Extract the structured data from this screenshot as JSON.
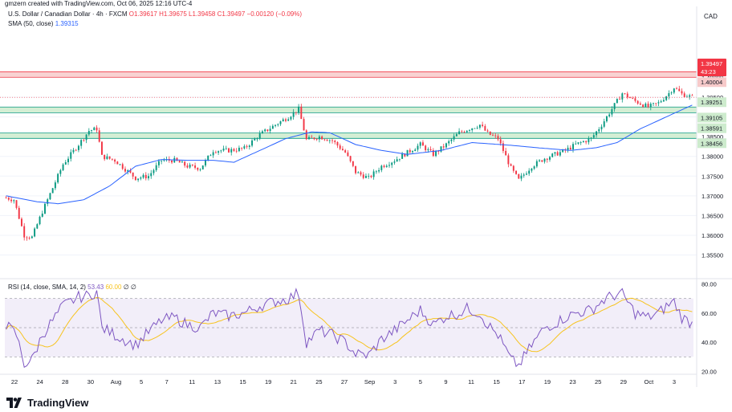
{
  "header": {
    "creator_line": "gmzern created with TradingView.com, Oct 06, 2025 12:16 UTC-4",
    "symbol_title": "U.S. Dollar / Canadian Dollar · 4h · FXCM",
    "ohlc": "O1.39617 H1.39675 L1.39458 C1.39497 −0.00120 (−0.09%)",
    "sma_label": "SMA (50, close)",
    "sma_value": "1.39315",
    "currency": "CAD"
  },
  "price_tags": {
    "last_price": "1.39497",
    "countdown": "43:23"
  },
  "rsi": {
    "label": "RSI (14, close, SMA, 14, 2)",
    "value": "53.43",
    "sma_value": "60.00",
    "extra": "∅ ∅",
    "axis_ticks": [
      "80.00",
      "60.00",
      "40.00",
      "20.00"
    ]
  },
  "brand": {
    "name": "TradingView"
  },
  "colors": {
    "up": "#089981",
    "down": "#f23645",
    "sma": "#2962ff",
    "rsi_line": "#7e57c2",
    "rsi_sma": "#f7c31d",
    "resistance_zone": "#f7caca",
    "support_zone": "#cdebcd"
  },
  "chart_data": {
    "type": "candlestick",
    "title": "U.S. Dollar / Canadian Dollar · 4h · FXCM",
    "ylim": [
      1.349,
      1.418
    ],
    "y_ticks": [
      "1.35500",
      "1.36000",
      "1.36500",
      "1.37000",
      "1.37500",
      "1.38000",
      "1.38500",
      "1.39000",
      "1.39500",
      "1.40000"
    ],
    "x_ticks": [
      "22",
      "24",
      "28",
      "30",
      "Aug",
      "5",
      "7",
      "11",
      "13",
      "15",
      "19",
      "21",
      "25",
      "27",
      "Sep",
      "3",
      "5",
      "9",
      "11",
      "15",
      "17",
      "19",
      "23",
      "25",
      "29",
      "Oct",
      "3"
    ],
    "zones": [
      {
        "type": "resistance",
        "upper": "1.40145",
        "lower": "1.40004"
      },
      {
        "type": "support",
        "upper": "1.39251",
        "lower": "1.39105"
      },
      {
        "type": "support",
        "upper": "1.38591",
        "lower": "1.38456"
      }
    ],
    "sma_anchors": [
      [
        0,
        1.37
      ],
      [
        12,
        1.3685
      ],
      [
        20,
        1.368
      ],
      [
        30,
        1.369
      ],
      [
        40,
        1.3725
      ],
      [
        50,
        1.3775
      ],
      [
        60,
        1.3792
      ],
      [
        70,
        1.379
      ],
      [
        80,
        1.379
      ],
      [
        88,
        1.3785
      ],
      [
        98,
        1.3815
      ],
      [
        108,
        1.3845
      ],
      [
        118,
        1.3862
      ],
      [
        125,
        1.386
      ],
      [
        135,
        1.383
      ],
      [
        145,
        1.3815
      ],
      [
        155,
        1.3805
      ],
      [
        168,
        1.3815
      ],
      [
        180,
        1.3835
      ],
      [
        195,
        1.3828
      ],
      [
        205,
        1.3822
      ],
      [
        218,
        1.3815
      ],
      [
        228,
        1.3822
      ],
      [
        236,
        1.3835
      ],
      [
        245,
        1.387
      ],
      [
        255,
        1.39
      ],
      [
        265,
        1.393
      ]
    ],
    "close_anchors": [
      [
        0,
        1.3695
      ],
      [
        3,
        1.369
      ],
      [
        7,
        1.36
      ],
      [
        10,
        1.3595
      ],
      [
        14,
        1.366
      ],
      [
        18,
        1.372
      ],
      [
        22,
        1.378
      ],
      [
        28,
        1.383
      ],
      [
        32,
        1.3865
      ],
      [
        35,
        1.387
      ],
      [
        37,
        1.38
      ],
      [
        42,
        1.379
      ],
      [
        50,
        1.3745
      ],
      [
        55,
        1.375
      ],
      [
        60,
        1.379
      ],
      [
        65,
        1.379
      ],
      [
        70,
        1.3775
      ],
      [
        75,
        1.377
      ],
      [
        80,
        1.3815
      ],
      [
        86,
        1.3815
      ],
      [
        92,
        1.382
      ],
      [
        98,
        1.3855
      ],
      [
        104,
        1.388
      ],
      [
        109,
        1.39
      ],
      [
        113,
        1.392
      ],
      [
        116,
        1.3842
      ],
      [
        121,
        1.385
      ],
      [
        126,
        1.384
      ],
      [
        131,
        1.381
      ],
      [
        135,
        1.376
      ],
      [
        140,
        1.3745
      ],
      [
        145,
        1.3775
      ],
      [
        150,
        1.379
      ],
      [
        155,
        1.381
      ],
      [
        160,
        1.383
      ],
      [
        165,
        1.3805
      ],
      [
        170,
        1.383
      ],
      [
        175,
        1.386
      ],
      [
        178,
        1.3868
      ],
      [
        183,
        1.388
      ],
      [
        186,
        1.3858
      ],
      [
        190,
        1.3845
      ],
      [
        195,
        1.377
      ],
      [
        198,
        1.374
      ],
      [
        203,
        1.3775
      ],
      [
        208,
        1.3795
      ],
      [
        212,
        1.3805
      ],
      [
        216,
        1.3815
      ],
      [
        220,
        1.383
      ],
      [
        226,
        1.3845
      ],
      [
        230,
        1.388
      ],
      [
        234,
        1.392
      ],
      [
        238,
        1.396
      ],
      [
        243,
        1.394
      ],
      [
        248,
        1.3925
      ],
      [
        252,
        1.3935
      ],
      [
        256,
        1.396
      ],
      [
        258,
        1.3975
      ],
      [
        261,
        1.3958
      ],
      [
        265,
        1.395
      ]
    ],
    "candle_count": 266,
    "rsi_ylim": [
      18,
      82
    ],
    "rsi_bands": [
      70,
      50,
      30
    ],
    "rsi_anchors": [
      [
        0,
        52
      ],
      [
        4,
        45
      ],
      [
        7,
        25
      ],
      [
        10,
        28
      ],
      [
        14,
        45
      ],
      [
        18,
        55
      ],
      [
        22,
        65
      ],
      [
        28,
        71
      ],
      [
        32,
        72
      ],
      [
        35,
        75
      ],
      [
        37,
        50
      ],
      [
        42,
        45
      ],
      [
        50,
        38
      ],
      [
        55,
        47
      ],
      [
        60,
        55
      ],
      [
        65,
        57
      ],
      [
        70,
        52
      ],
      [
        75,
        50
      ],
      [
        80,
        60
      ],
      [
        86,
        58
      ],
      [
        92,
        60
      ],
      [
        98,
        65
      ],
      [
        104,
        68
      ],
      [
        109,
        70
      ],
      [
        113,
        74
      ],
      [
        116,
        40
      ],
      [
        121,
        48
      ],
      [
        126,
        45
      ],
      [
        131,
        40
      ],
      [
        135,
        32
      ],
      [
        140,
        31
      ],
      [
        145,
        42
      ],
      [
        150,
        48
      ],
      [
        155,
        55
      ],
      [
        160,
        62
      ],
      [
        165,
        52
      ],
      [
        170,
        58
      ],
      [
        175,
        60
      ],
      [
        178,
        63
      ],
      [
        183,
        60
      ],
      [
        186,
        52
      ],
      [
        190,
        45
      ],
      [
        195,
        28
      ],
      [
        198,
        24
      ],
      [
        203,
        38
      ],
      [
        208,
        50
      ],
      [
        212,
        53
      ],
      [
        216,
        57
      ],
      [
        220,
        60
      ],
      [
        226,
        62
      ],
      [
        230,
        68
      ],
      [
        234,
        72
      ],
      [
        238,
        73
      ],
      [
        243,
        60
      ],
      [
        248,
        57
      ],
      [
        252,
        60
      ],
      [
        256,
        66
      ],
      [
        258,
        68
      ],
      [
        261,
        57
      ],
      [
        265,
        53
      ]
    ]
  }
}
